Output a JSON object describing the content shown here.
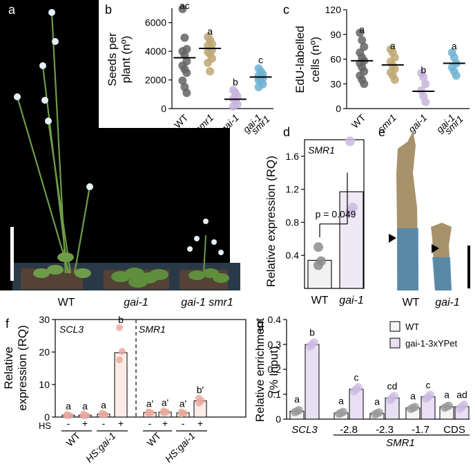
{
  "panels": {
    "a": {
      "letter": "a",
      "labels": [
        "WT",
        "gai-1",
        "gai-1 smr1"
      ]
    },
    "b": {
      "letter": "b",
      "ylabel_lines": [
        "Seeds per",
        "plant (nº)"
      ],
      "yticks": [
        0,
        2000,
        4000,
        6000
      ],
      "ylim": [
        0,
        7000
      ],
      "groups": [
        {
          "label": "WT",
          "italic": false,
          "letter": "ac",
          "color": "#646464",
          "mean": 3550,
          "points": [
            6950,
            4950,
            4150,
            4000,
            3750,
            3300,
            3000,
            2750,
            2500,
            1950,
            1500,
            1100
          ]
        },
        {
          "label": "smr1",
          "italic": true,
          "letter": "a",
          "color": "#bfa873",
          "mean": 4200,
          "points": [
            5000,
            4800,
            4500,
            4400,
            4250,
            4100,
            3950,
            3800,
            3500,
            3200,
            2600
          ]
        },
        {
          "label": "gai-1",
          "italic": true,
          "letter": "b",
          "color": "#c8b4de",
          "mean": 650,
          "points": [
            1300,
            1100,
            850,
            700,
            500,
            300,
            150
          ]
        },
        {
          "label": "gai-1 smr1",
          "italic": true,
          "letter": "c",
          "color": "#6eb2d2",
          "mean": 2200,
          "points": [
            2800,
            2600,
            2400,
            2300,
            2200,
            2100,
            2000,
            1900,
            1700,
            1500
          ]
        }
      ]
    },
    "c": {
      "letter": "c",
      "ylabel_lines": [
        "EdU-labelled",
        "cells (nº)"
      ],
      "yticks": [
        0,
        30,
        60,
        90,
        120
      ],
      "ylim": [
        0,
        120
      ],
      "groups": [
        {
          "label": "WT",
          "italic": false,
          "letter": "a",
          "color": "#646464",
          "mean": 58,
          "points": [
            92,
            83,
            75,
            68,
            62,
            58,
            55,
            50,
            45,
            40,
            35,
            30
          ]
        },
        {
          "label": "smr1",
          "italic": true,
          "letter": "a",
          "color": "#bfa873",
          "mean": 53,
          "points": [
            72,
            68,
            62,
            57,
            52,
            48,
            44,
            40,
            35
          ]
        },
        {
          "label": "gai-1",
          "italic": true,
          "letter": "b",
          "color": "#c8b4de",
          "mean": 21,
          "points": [
            43,
            38,
            30,
            22,
            15,
            8
          ]
        },
        {
          "label": "gai-1 smr1",
          "italic": true,
          "letter": "a",
          "color": "#6eb2d2",
          "mean": 55,
          "points": [
            68,
            62,
            55,
            50,
            45,
            40
          ]
        }
      ]
    },
    "d": {
      "letter": "d",
      "title": "SMR1",
      "ylabel": "Relative expression (RQ)",
      "yticks": [
        "0.4",
        "0.8",
        "1.2",
        "1.6"
      ],
      "ylim": [
        0,
        1.8
      ],
      "p_label": "p = 0.049",
      "bars": [
        {
          "label": "WT",
          "italic": false,
          "value": 0.34,
          "color": "#f2f2f2",
          "point_color": "#8c8c8c",
          "points": [
            0.5,
            0.33,
            0.28
          ]
        },
        {
          "label": "gai-1",
          "italic": true,
          "value": 1.17,
          "color": "#efe9f5",
          "point_color": "#cbbbe0",
          "points": [
            1.78,
            0.98,
            0.93
          ]
        }
      ]
    },
    "e": {
      "letter": "e",
      "labels": [
        "WT",
        "gai-1"
      ]
    },
    "f": {
      "letter": "f",
      "ylabel_lines": [
        "Relative",
        "expression (RQ)"
      ],
      "yticks": [
        0,
        10,
        20,
        30
      ],
      "ylim": [
        0,
        30
      ],
      "gene_labels": [
        "SCL3",
        "SMR1"
      ],
      "hs_label": "HS",
      "signs": [
        "-",
        "+"
      ],
      "group_labels": [
        "WT",
        "HS:gai-1",
        "WT",
        "HS:gai-1"
      ],
      "bars": [
        {
          "value": 0.6,
          "letter": "a",
          "points": [
            0.8,
            0.5,
            0.4
          ]
        },
        {
          "value": 0.6,
          "letter": "a",
          "points": [
            0.9,
            0.5,
            0.4
          ]
        },
        {
          "value": 0.9,
          "letter": "a",
          "points": [
            1.2,
            0.8,
            0.7
          ]
        },
        {
          "value": 19.8,
          "letter": "b",
          "points": [
            27.5,
            20.2,
            17.6
          ]
        },
        {
          "value": 1.4,
          "letter": "a'",
          "points": [
            1.6,
            1.3,
            1.2
          ]
        },
        {
          "value": 1.5,
          "letter": "a'",
          "points": [
            1.9,
            1.5,
            1.3
          ]
        },
        {
          "value": 1.3,
          "letter": "a'",
          "points": [
            1.6,
            1.2,
            1.0
          ]
        },
        {
          "value": 5.0,
          "letter": "b'",
          "points": [
            5.8,
            5.0,
            4.3
          ]
        }
      ],
      "bar_color": "#fbece8",
      "point_color": "#e9a79b"
    },
    "g": {
      "letter": "g",
      "ylabel_lines": [
        "Relative enrichment",
        "(% Input)"
      ],
      "yticks": [
        "0",
        "0.1",
        "0.2",
        "0.3",
        "0.4"
      ],
      "ylim": [
        0,
        0.4
      ],
      "categories": [
        "SCL3",
        "-2.8",
        "-2.3",
        "-1.7",
        "CDS"
      ],
      "xgroup_label": "SMR1",
      "legend": [
        {
          "name": "WT",
          "color": "#f4f4f4"
        },
        {
          "name": "gai-1-3xYPet",
          "color": "#e8e0f2"
        }
      ],
      "wt_point_color": "#9a9a9a",
      "gai_point_color": "#cbbbe0",
      "wt": [
        {
          "value": 0.032,
          "letter": "a"
        },
        {
          "value": 0.025,
          "letter": "a"
        },
        {
          "value": 0.023,
          "letter": "a"
        },
        {
          "value": 0.045,
          "letter": "a"
        },
        {
          "value": 0.05,
          "letter": "a"
        }
      ],
      "gai": [
        {
          "value": 0.3,
          "letter": "b"
        },
        {
          "value": 0.12,
          "letter": "c"
        },
        {
          "value": 0.085,
          "letter": "cd"
        },
        {
          "value": 0.09,
          "letter": "c"
        },
        {
          "value": 0.05,
          "letter": "ad"
        }
      ]
    }
  },
  "chart_data": [
    {
      "type": "scatter",
      "ylabel": "Seeds per plant (nº)",
      "categories": [
        "WT",
        "smr1",
        "gai-1",
        "gai-1 smr1"
      ],
      "means": [
        3550,
        4200,
        650,
        2200
      ],
      "ylim": [
        0,
        7000
      ]
    },
    {
      "type": "scatter",
      "ylabel": "EdU-labelled cells (nº)",
      "categories": [
        "WT",
        "smr1",
        "gai-1",
        "gai-1 smr1"
      ],
      "means": [
        58,
        53,
        21,
        55
      ],
      "ylim": [
        0,
        120
      ]
    },
    {
      "type": "bar",
      "title": "SMR1",
      "ylabel": "Relative expression (RQ)",
      "categories": [
        "WT",
        "gai-1"
      ],
      "values": [
        0.34,
        1.17
      ]
    },
    {
      "type": "bar",
      "ylabel": "Relative expression (RQ)",
      "categories": [
        "SCL3 WT -",
        "SCL3 WT +",
        "SCL3 HS:gai-1 -",
        "SCL3 HS:gai-1 +",
        "SMR1 WT -",
        "SMR1 WT +",
        "SMR1 HS:gai-1 -",
        "SMR1 HS:gai-1 +"
      ],
      "values": [
        0.6,
        0.6,
        0.9,
        19.8,
        1.4,
        1.5,
        1.3,
        5.0
      ]
    },
    {
      "type": "bar",
      "ylabel": "Relative enrichment (% Input)",
      "categories": [
        "SCL3",
        "-2.8",
        "-2.3",
        "-1.7",
        "CDS"
      ],
      "series": [
        {
          "name": "WT",
          "values": [
            0.032,
            0.025,
            0.023,
            0.045,
            0.05
          ]
        },
        {
          "name": "gai-1-3xYPet",
          "values": [
            0.3,
            0.12,
            0.085,
            0.09,
            0.05
          ]
        }
      ]
    }
  ]
}
